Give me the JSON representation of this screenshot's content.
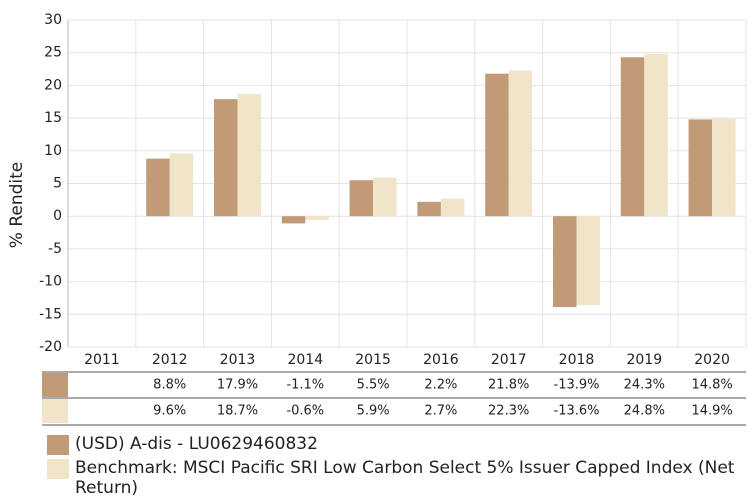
{
  "chart_data": {
    "type": "bar",
    "y_label": "% Rendite",
    "categories": [
      "2011",
      "2012",
      "2013",
      "2014",
      "2015",
      "2016",
      "2017",
      "2018",
      "2019",
      "2020"
    ],
    "series": [
      {
        "name": "(USD) A-dis - LU0629460832",
        "color": "#c19b78",
        "values": [
          null,
          8.8,
          17.9,
          -1.1,
          5.5,
          2.2,
          21.8,
          -13.9,
          24.3,
          14.8
        ],
        "value_labels": [
          null,
          "8.8%",
          "17.9%",
          "-1.1%",
          "5.5%",
          "2.2%",
          "21.8%",
          "-13.9%",
          "24.3%",
          "14.8%"
        ]
      },
      {
        "name": "Benchmark: MSCI Pacific SRI Low Carbon Select 5% Issuer Capped Index (Net Return)",
        "color": "#f1e5c9",
        "values": [
          null,
          9.6,
          18.7,
          -0.6,
          5.9,
          2.7,
          22.3,
          -13.6,
          24.8,
          14.9
        ],
        "value_labels": [
          null,
          "9.6%",
          "18.7%",
          "-0.6%",
          "5.9%",
          "2.7%",
          "22.3%",
          "-13.6%",
          "24.8%",
          "14.9%"
        ]
      }
    ],
    "ylim": [
      -20,
      30
    ],
    "yticks": [
      -20,
      -15,
      -10,
      -5,
      0,
      5,
      10,
      15,
      20,
      25,
      30
    ],
    "grid": true
  }
}
